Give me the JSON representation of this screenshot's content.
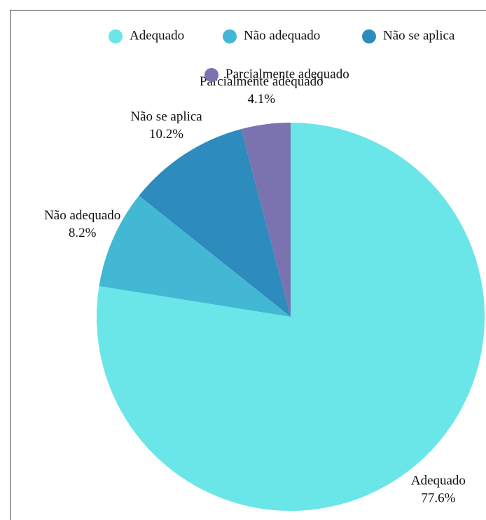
{
  "chart_data": {
    "type": "pie",
    "categories": [
      "Adequado",
      "Não adequado",
      "Não se aplica",
      "Parcialmente adequado"
    ],
    "values": [
      77.6,
      8.2,
      10.2,
      4.1
    ],
    "value_labels": [
      "77.6%",
      "8.2%",
      "10.2%",
      "4.1%"
    ],
    "colors": [
      "#6ae5e8",
      "#42b8d4",
      "#2e8bbd",
      "#7b72b0"
    ],
    "legend": "top"
  }
}
